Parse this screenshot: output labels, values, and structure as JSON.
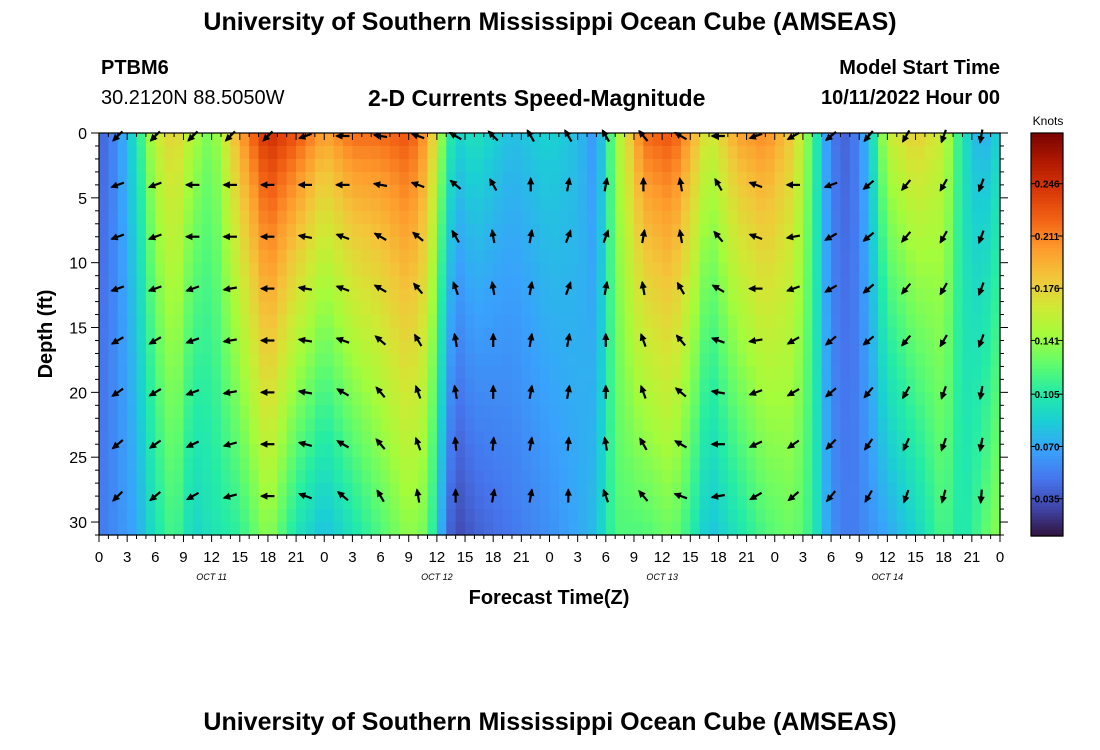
{
  "header": {
    "title": "University of Southern Mississippi Ocean Cube (AMSEAS)",
    "station": "PTBM6",
    "coords": "30.2120N  88.5050W",
    "subtitle": "2-D Currents Speed-Magnitude",
    "model_start_label": "Model Start Time",
    "model_start_value": "10/11/2022 Hour 00"
  },
  "footer": {
    "title": "University of Southern Mississippi Ocean Cube (AMSEAS)"
  },
  "chart_data": {
    "type": "heatmap",
    "title": "2-D Currents Speed-Magnitude",
    "xlabel": "Forecast Time(Z)",
    "ylabel": "Depth (ft)",
    "xlim": [
      0,
      96
    ],
    "ylim": [
      0,
      31
    ],
    "x_tick_labels": [
      "0",
      "3",
      "6",
      "9",
      "12",
      "15",
      "18",
      "21",
      "0",
      "3",
      "6",
      "9",
      "12",
      "15",
      "18",
      "21",
      "0",
      "3",
      "6",
      "9",
      "12",
      "15",
      "18",
      "21",
      "0",
      "3",
      "6",
      "9",
      "12",
      "15",
      "18",
      "21",
      "0"
    ],
    "y_tick_labels": [
      "0",
      "5",
      "10",
      "15",
      "20",
      "25",
      "30"
    ],
    "y_tick_values": [
      0,
      5,
      10,
      15,
      20,
      25,
      30
    ],
    "day_labels": [
      {
        "text": "OCT 11",
        "x": 12
      },
      {
        "text": "OCT 12",
        "x": 36
      },
      {
        "text": "OCT 13",
        "x": 60
      },
      {
        "text": "OCT 14",
        "x": 84
      }
    ],
    "colorbar": {
      "unit": "Knots",
      "ticks": [
        "0.246",
        "0.211",
        "0.176",
        "0.141",
        "0.105",
        "0.070",
        "0.035"
      ],
      "tick_values": [
        0.246,
        0.211,
        0.176,
        0.141,
        0.105,
        0.07,
        0.035
      ],
      "min": 0.01,
      "max": 0.28
    },
    "colormap": [
      "#30123b",
      "#4145ab",
      "#4675ed",
      "#39a2fc",
      "#1bcfd4",
      "#24eca6",
      "#61fc6c",
      "#a4fc3b",
      "#d1e834",
      "#f3c63a",
      "#fe9b2d",
      "#f36315",
      "#d93806",
      "#b11901",
      "#7a0402"
    ],
    "speed_keyframes": [
      {
        "t": 0,
        "top": 0.04,
        "bottom": 0.05
      },
      {
        "t": 2,
        "top": 0.06,
        "bottom": 0.06
      },
      {
        "t": 4,
        "top": 0.1,
        "bottom": 0.07
      },
      {
        "t": 6,
        "top": 0.16,
        "bottom": 0.1
      },
      {
        "t": 8,
        "top": 0.18,
        "bottom": 0.12
      },
      {
        "t": 10,
        "top": 0.15,
        "bottom": 0.09
      },
      {
        "t": 12,
        "top": 0.13,
        "bottom": 0.1
      },
      {
        "t": 15,
        "top": 0.2,
        "bottom": 0.11
      },
      {
        "t": 18,
        "top": 0.25,
        "bottom": 0.14
      },
      {
        "t": 21,
        "top": 0.23,
        "bottom": 0.1
      },
      {
        "t": 24,
        "top": 0.2,
        "bottom": 0.08
      },
      {
        "t": 27,
        "top": 0.22,
        "bottom": 0.1
      },
      {
        "t": 30,
        "top": 0.22,
        "bottom": 0.12
      },
      {
        "t": 33,
        "top": 0.23,
        "bottom": 0.14
      },
      {
        "t": 35,
        "top": 0.2,
        "bottom": 0.13
      },
      {
        "t": 37,
        "top": 0.12,
        "bottom": 0.05
      },
      {
        "t": 38,
        "top": 0.09,
        "bottom": 0.03
      },
      {
        "t": 40,
        "top": 0.1,
        "bottom": 0.04
      },
      {
        "t": 44,
        "top": 0.08,
        "bottom": 0.05
      },
      {
        "t": 48,
        "top": 0.09,
        "bottom": 0.06
      },
      {
        "t": 51,
        "top": 0.08,
        "bottom": 0.07
      },
      {
        "t": 53,
        "top": 0.06,
        "bottom": 0.08
      },
      {
        "t": 55,
        "top": 0.14,
        "bottom": 0.12
      },
      {
        "t": 58,
        "top": 0.22,
        "bottom": 0.12
      },
      {
        "t": 61,
        "top": 0.23,
        "bottom": 0.13
      },
      {
        "t": 63,
        "top": 0.2,
        "bottom": 0.11
      },
      {
        "t": 65,
        "top": 0.16,
        "bottom": 0.08
      },
      {
        "t": 68,
        "top": 0.2,
        "bottom": 0.1
      },
      {
        "t": 71,
        "top": 0.21,
        "bottom": 0.12
      },
      {
        "t": 74,
        "top": 0.18,
        "bottom": 0.13
      },
      {
        "t": 76,
        "top": 0.12,
        "bottom": 0.11
      },
      {
        "t": 78,
        "top": 0.05,
        "bottom": 0.06
      },
      {
        "t": 80,
        "top": 0.04,
        "bottom": 0.05
      },
      {
        "t": 82,
        "top": 0.08,
        "bottom": 0.06
      },
      {
        "t": 84,
        "top": 0.16,
        "bottom": 0.07
      },
      {
        "t": 87,
        "top": 0.18,
        "bottom": 0.09
      },
      {
        "t": 90,
        "top": 0.16,
        "bottom": 0.12
      },
      {
        "t": 92,
        "top": 0.1,
        "bottom": 0.1
      },
      {
        "t": 94,
        "top": 0.07,
        "bottom": 0.12
      },
      {
        "t": 96,
        "top": 0.09,
        "bottom": 0.14
      }
    ],
    "arrow_depths": [
      0,
      4,
      8,
      12,
      16,
      20,
      24,
      28
    ],
    "arrow_times": [
      2,
      6,
      10,
      14,
      18,
      22,
      26,
      30,
      34,
      38,
      42,
      46,
      50,
      54,
      58,
      62,
      66,
      70,
      74,
      78,
      82,
      86,
      90,
      94
    ],
    "arrow_angles_deg": [
      [
        225,
        225,
        225,
        225,
        225,
        200,
        180,
        170,
        160,
        150,
        135,
        120,
        120,
        120,
        130,
        150,
        180,
        200,
        210,
        220,
        230,
        240,
        250,
        260
      ],
      [
        200,
        200,
        180,
        180,
        180,
        180,
        180,
        170,
        160,
        140,
        120,
        90,
        80,
        80,
        90,
        100,
        120,
        160,
        180,
        200,
        220,
        230,
        240,
        250
      ],
      [
        200,
        200,
        180,
        180,
        180,
        170,
        160,
        150,
        140,
        120,
        100,
        80,
        70,
        70,
        80,
        100,
        130,
        160,
        190,
        210,
        220,
        230,
        240,
        250
      ],
      [
        200,
        200,
        200,
        190,
        180,
        170,
        160,
        150,
        130,
        110,
        100,
        80,
        70,
        80,
        100,
        120,
        150,
        180,
        200,
        210,
        220,
        230,
        240,
        250
      ],
      [
        210,
        210,
        200,
        190,
        180,
        170,
        160,
        140,
        120,
        100,
        90,
        80,
        80,
        90,
        110,
        130,
        160,
        190,
        210,
        220,
        220,
        230,
        240,
        250
      ],
      [
        215,
        210,
        200,
        190,
        180,
        170,
        150,
        130,
        110,
        100,
        90,
        80,
        80,
        90,
        110,
        140,
        170,
        200,
        210,
        220,
        230,
        240,
        250,
        260
      ],
      [
        220,
        215,
        205,
        195,
        180,
        165,
        150,
        130,
        110,
        95,
        85,
        80,
        85,
        100,
        120,
        150,
        180,
        205,
        215,
        225,
        235,
        245,
        250,
        260
      ],
      [
        225,
        220,
        210,
        195,
        180,
        160,
        140,
        120,
        100,
        90,
        80,
        80,
        90,
        110,
        130,
        160,
        190,
        210,
        220,
        230,
        240,
        250,
        255,
        265
      ]
    ]
  }
}
